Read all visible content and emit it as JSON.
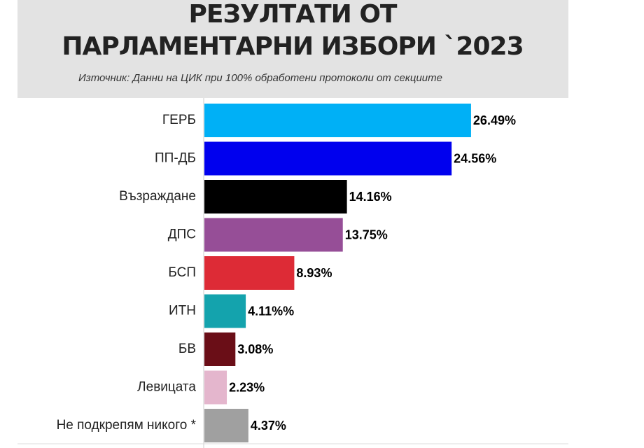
{
  "chart_data": {
    "type": "bar",
    "orientation": "horizontal",
    "title": [
      "РЕЗУЛТАТИ ОТ",
      "ПАРЛАМЕНТАРНИ ИЗБОРИ `2023"
    ],
    "subtitle": "Източник: Данни на ЦИК при 100% обработени протоколи от секциите",
    "categories": [
      "ГЕРБ",
      "ПП-ДБ",
      "Възраждане",
      "ДПС",
      "БСП",
      "ИТН",
      "БВ",
      "Левицата",
      "Не подкрепям никого *"
    ],
    "values": [
      26.49,
      24.56,
      14.16,
      13.75,
      8.93,
      4.11,
      3.08,
      2.23,
      4.37
    ],
    "value_labels": [
      "26.49%",
      "24.56%",
      "14.16%",
      "13.75%",
      "8.93%",
      "4.11%%",
      "3.08%",
      "2.23%",
      "4.37%"
    ],
    "colors": [
      "#00b0f6",
      "#0000ee",
      "#000000",
      "#964e97",
      "#dd2b36",
      "#14a3ad",
      "#6a0e17",
      "#e4b6cd",
      "#a0a0a0"
    ]
  }
}
